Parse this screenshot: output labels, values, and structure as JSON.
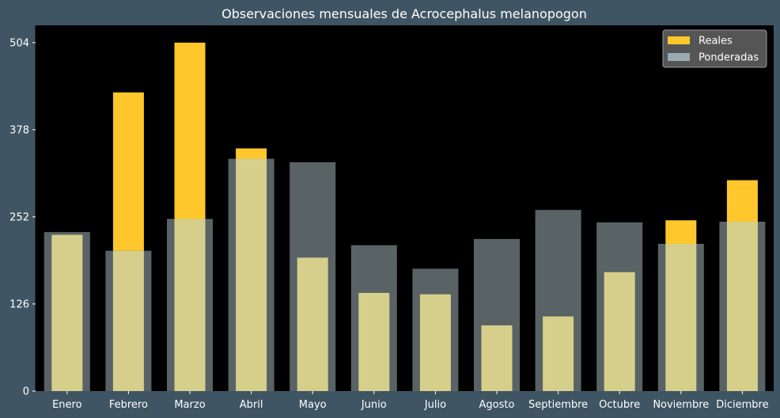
{
  "chart_data": {
    "type": "bar",
    "title": "Observaciones mensuales de Acrocephalus melanopogon",
    "xlabel": "",
    "ylabel": "",
    "categories": [
      "Enero",
      "Febrero",
      "Marzo",
      "Abril",
      "Mayo",
      "Junio",
      "Julio",
      "Agosto",
      "Septiembre",
      "Octubre",
      "Noviembre",
      "Diciembre"
    ],
    "series": [
      {
        "name": "Reales",
        "color": "#ffc72c",
        "values": [
          226,
          432,
          504,
          351,
          193,
          142,
          140,
          95,
          108,
          172,
          247,
          305
        ]
      },
      {
        "name": "Ponderadas",
        "color": "#9aabb0",
        "values": [
          230,
          203,
          249,
          336,
          331,
          211,
          177,
          220,
          262,
          244,
          213,
          245
        ]
      }
    ],
    "yticks": [
      0,
      126,
      252,
      378,
      504
    ],
    "ylim": [
      0,
      529
    ],
    "legend_position": "top-right",
    "grid": false,
    "plot_background": "#000000",
    "figure_background": "#3f5563"
  }
}
